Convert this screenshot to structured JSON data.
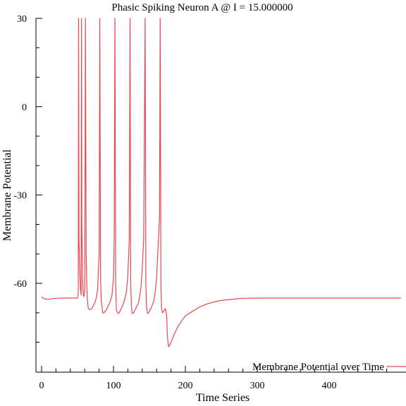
{
  "chart_data": {
    "type": "line",
    "title": "Phasic Spiking Neuron A @ I = 15.000000",
    "xlabel": "Time Series",
    "ylabel": "Membrane Potential",
    "xlim": [
      0,
      500
    ],
    "ylim": [
      -82,
      30
    ],
    "x_ticks": [
      0,
      100,
      200,
      300,
      400
    ],
    "x_tick_labels": [
      "0",
      "100",
      "200",
      "300",
      "400"
    ],
    "y_ticks": [
      -60,
      -30,
      0,
      30
    ],
    "y_tick_labels": [
      "-60",
      "-30",
      "0",
      "30"
    ],
    "grid": false,
    "legend_position": "bottom-right",
    "series": [
      {
        "name": "Membrane Potential over Time",
        "color": "#e8474c",
        "x": [
          0,
          2,
          5,
          10,
          15,
          20,
          30,
          40,
          45,
          50,
          51,
          51.5,
          52,
          53,
          54,
          55,
          55.6,
          56,
          57,
          58,
          59,
          60,
          61,
          62,
          63,
          64,
          65,
          68,
          70,
          72,
          74,
          76,
          78,
          80,
          81,
          82,
          83,
          85,
          87,
          90,
          92,
          95,
          98,
          100,
          101,
          102,
          103,
          104,
          106,
          108,
          110,
          112,
          115,
          118,
          120,
          122,
          123,
          124,
          125,
          126,
          128,
          130,
          132,
          135,
          138,
          140,
          142,
          144,
          145,
          146,
          147,
          148,
          150,
          153,
          156,
          158,
          160,
          162,
          164,
          165,
          166,
          167,
          168,
          170,
          172,
          173,
          174,
          175,
          176,
          177,
          178,
          180,
          185,
          190,
          200,
          210,
          220,
          230,
          240,
          250,
          260,
          270,
          280,
          290,
          300,
          310,
          320,
          330,
          340,
          350,
          360,
          380,
          400,
          420,
          440,
          460,
          480,
          500
        ],
        "y": [
          -64.5,
          -65.0,
          -65.3,
          -65.4,
          -65.2,
          -65.1,
          -65.0,
          -65.0,
          -65.0,
          -65.0,
          -63.0,
          30.0,
          -45.0,
          -55.0,
          -62.0,
          -64.0,
          30.0,
          -40.0,
          -58.0,
          -64.0,
          -64.5,
          -62.0,
          30.0,
          -50.0,
          -62.0,
          -66.5,
          -68.5,
          -69.0,
          -68.5,
          -67.5,
          -66.5,
          -65.0,
          -62.0,
          -50.0,
          30.0,
          -58.0,
          -66.0,
          -70.0,
          -70.0,
          -69.0,
          -68.0,
          -66.5,
          -64.0,
          -58.0,
          -45.0,
          30.0,
          -60.0,
          -69.0,
          -70.2,
          -70.0,
          -69.0,
          -68.0,
          -66.0,
          -63.0,
          -57.0,
          -45.0,
          30.0,
          -60.0,
          -68.0,
          -70.2,
          -70.0,
          -69.0,
          -68.0,
          -66.5,
          -62.0,
          -55.0,
          -45.0,
          30.0,
          -60.0,
          -68.0,
          -70.0,
          -70.2,
          -69.5,
          -68.0,
          -66.0,
          -63.0,
          -58.0,
          -48.0,
          -38.0,
          30.0,
          -62.0,
          -68.5,
          -70.0,
          -69.5,
          -68.5,
          -69.5,
          -71.0,
          -78.0,
          -80.5,
          -81.5,
          -81.0,
          -80.0,
          -77.0,
          -74.5,
          -71.0,
          -69.5,
          -68.0,
          -67.0,
          -66.3,
          -65.8,
          -65.5,
          -65.3,
          -65.1,
          -65.05,
          -65.02,
          -65.0,
          -65.0,
          -65.0,
          -65.0,
          -65.0,
          -65.0,
          -65.0,
          -65.0,
          -65.0,
          -65.0,
          -65.0,
          -65.0,
          -65.0
        ]
      }
    ]
  }
}
